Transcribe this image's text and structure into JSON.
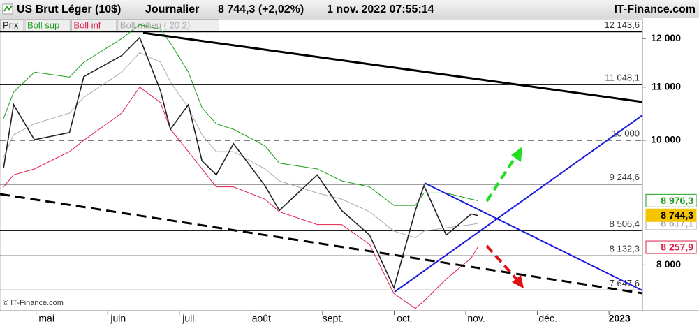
{
  "chart_data": {
    "type": "line",
    "title": "US Brut Léger (10$)",
    "period": "Journalier",
    "last_price": "8 744,3 (+2,02%)",
    "timestamp": "1 nov. 2022 07:55:14",
    "brand": "IT-Finance.com",
    "footer": "© IT-Finance.com",
    "legend_prefix": "Prix",
    "log_scale": true,
    "xlim": [
      -0.65,
      8.32
    ],
    "xticks": [
      {
        "value": 0,
        "label": "mai"
      },
      {
        "value": 1,
        "label": "juin"
      },
      {
        "value": 2,
        "label": "juil."
      },
      {
        "value": 3,
        "label": "août"
      },
      {
        "value": 4,
        "label": "sept."
      },
      {
        "value": 5,
        "label": "oct."
      },
      {
        "value": 6,
        "label": "nov."
      },
      {
        "value": 7,
        "label": "déc."
      },
      {
        "value": 8,
        "label": "2023"
      }
    ],
    "ylim": [
      7370,
      12430
    ],
    "yticks": [
      {
        "value": 8000,
        "label": "8 000"
      },
      {
        "value": 10000,
        "label": "10 000"
      },
      {
        "value": 11000,
        "label": "11 000"
      },
      {
        "value": 12000,
        "label": "12 000"
      }
    ],
    "levels": [
      {
        "value": 12143.6,
        "label": "12 143,6"
      },
      {
        "value": 11048.1,
        "label": "11 048,1"
      },
      {
        "value": 10000,
        "label": "10 000",
        "dashed": true
      },
      {
        "value": 9244.6,
        "label": "9 244,6"
      },
      {
        "value": 8506.4,
        "label": "8 506,4"
      },
      {
        "value": 8132.3,
        "label": "8 132,3"
      },
      {
        "value": 7647.6,
        "label": "7 647,6"
      }
    ],
    "x": [
      -0.6,
      -0.46,
      -0.17,
      0.32,
      0.52,
      1.05,
      1.3,
      1.59,
      1.73,
      1.98,
      2.17,
      2.37,
      2.61,
      3.05,
      3.25,
      3.78,
      4.12,
      4.51,
      4.85,
      5.15,
      5.27,
      5.58,
      5.93,
      6.02
    ],
    "series": [
      {
        "name": "Boll sup",
        "color": "#1a9e1a",
        "badge": {
          "value": 8976.3,
          "label": "8 976,3"
        },
        "values": [
          10400,
          10900,
          11300,
          11200,
          11500,
          12000,
          12300,
          12200,
          11900,
          11300,
          10600,
          10300,
          10200,
          9900,
          9600,
          9500,
          9300,
          9200,
          8900,
          8900,
          9100,
          9100,
          9000,
          8976
        ]
      },
      {
        "name": "Boll inf",
        "color": "#e0204a",
        "badge": {
          "value": 8257.9,
          "label": "8 257,9"
        },
        "values": [
          9200,
          9400,
          9500,
          9800,
          10000,
          10500,
          11000,
          10700,
          10200,
          9800,
          9500,
          9200,
          9200,
          9000,
          8800,
          8600,
          8600,
          8300,
          7600,
          7400,
          7500,
          7800,
          8100,
          8258
        ]
      },
      {
        "name": "Boll milieu ( 20 2)",
        "color": "#aaaaaa",
        "badge": {
          "value": 8617.1,
          "label": "8 617,1"
        },
        "values": [
          9700,
          10100,
          10300,
          10500,
          10800,
          11300,
          11700,
          11500,
          11100,
          10600,
          10100,
          9800,
          9800,
          9500,
          9300,
          9100,
          9000,
          8800,
          8500,
          8400,
          8500,
          8550,
          8600,
          8617
        ]
      },
      {
        "name": "Prix",
        "color": "#222222",
        "badge": {
          "value": 8744.3,
          "label": "8 744,3"
        },
        "values": [
          9515,
          10660,
          10010,
          10140,
          11210,
          11640,
          12020,
          10930,
          10200,
          10660,
          9640,
          9400,
          9940,
          9220,
          8820,
          9400,
          8820,
          8440,
          7680,
          8820,
          9220,
          8440,
          8765,
          8740
        ]
      }
    ]
  }
}
